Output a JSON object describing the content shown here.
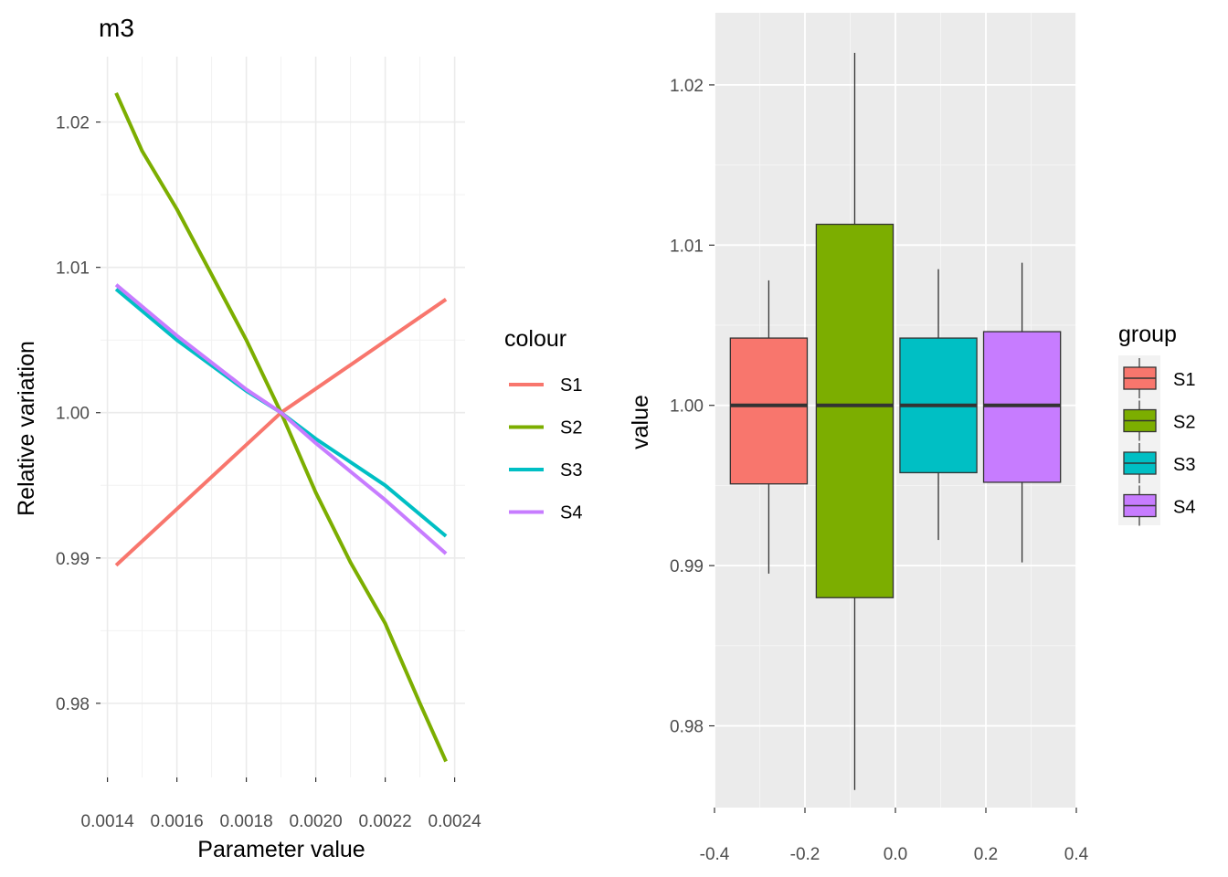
{
  "chart_data": [
    {
      "type": "line",
      "title": "m3",
      "xlabel": "Parameter value",
      "ylabel": "Relative variation",
      "xlim": [
        0.00138,
        0.00243
      ],
      "ylim": [
        0.9749,
        1.0245
      ],
      "x_ticks": [
        0.0014,
        0.0016,
        0.0018,
        0.002,
        0.0022,
        0.0024
      ],
      "x_tick_labels": [
        "0.0014",
        "0.0016",
        "0.0018",
        "0.0020",
        "0.0022",
        "0.0024"
      ],
      "y_ticks": [
        0.98,
        0.99,
        1.0,
        1.01,
        1.02
      ],
      "y_tick_labels": [
        "0.98",
        "0.99",
        "1.00",
        "1.01",
        "1.02"
      ],
      "grid": true,
      "legend": {
        "title": "colour",
        "position": "right"
      },
      "series": [
        {
          "name": "S1",
          "color": "#F8766D",
          "x": [
            0.001425,
            0.0019,
            0.002375
          ],
          "y": [
            0.9895,
            1.0,
            1.0078
          ]
        },
        {
          "name": "S2",
          "color": "#7CAE00",
          "x": [
            0.001425,
            0.0015,
            0.0016,
            0.0017,
            0.0018,
            0.0019,
            0.002,
            0.0021,
            0.0022,
            0.0023,
            0.002375
          ],
          "y": [
            1.022,
            1.018,
            1.014,
            1.0095,
            1.005,
            1.0,
            0.9945,
            0.9897,
            0.9855,
            0.98,
            0.976
          ]
        },
        {
          "name": "S3",
          "color": "#00BFC4",
          "x": [
            0.001425,
            0.0016,
            0.0018,
            0.0019,
            0.002,
            0.0022,
            0.002375
          ],
          "y": [
            1.0085,
            1.005,
            1.0015,
            1.0,
            0.9982,
            0.995,
            0.9915
          ]
        },
        {
          "name": "S4",
          "color": "#C77CFF",
          "x": [
            0.001425,
            0.0016,
            0.0018,
            0.0019,
            0.002,
            0.0022,
            0.002375
          ],
          "y": [
            1.0088,
            1.0053,
            1.0016,
            1.0,
            0.9979,
            0.994,
            0.9903
          ]
        }
      ]
    },
    {
      "type": "box",
      "title": "",
      "xlabel": "",
      "ylabel": "value",
      "xlim": [
        -0.4,
        0.4
      ],
      "ylim": [
        0.9749,
        1.0245
      ],
      "x_ticks": [
        -0.4,
        -0.2,
        0.0,
        0.2,
        0.4
      ],
      "x_tick_labels": [
        "-0.4",
        "-0.2",
        "0.0",
        "0.2",
        "0.4"
      ],
      "y_ticks": [
        0.98,
        0.99,
        1.0,
        1.01,
        1.02
      ],
      "y_tick_labels": [
        "0.98",
        "0.99",
        "1.00",
        "1.01",
        "1.02"
      ],
      "grid": true,
      "legend": {
        "title": "group",
        "position": "right"
      },
      "boxes": [
        {
          "name": "S1",
          "color": "#F8766D",
          "x_center": -0.28,
          "width": 0.17,
          "min": 0.9895,
          "q1": 0.9951,
          "median": 1.0,
          "q3": 1.0042,
          "max": 1.0078
        },
        {
          "name": "S2",
          "color": "#7CAE00",
          "x_center": -0.09,
          "width": 0.17,
          "min": 0.976,
          "q1": 0.988,
          "median": 1.0,
          "q3": 1.0113,
          "max": 1.022
        },
        {
          "name": "S3",
          "color": "#00BFC4",
          "x_center": 0.095,
          "width": 0.17,
          "min": 0.9916,
          "q1": 0.9958,
          "median": 1.0,
          "q3": 1.0042,
          "max": 1.0085
        },
        {
          "name": "S4",
          "color": "#C77CFF",
          "x_center": 0.28,
          "width": 0.17,
          "min": 0.9902,
          "q1": 0.9952,
          "median": 1.0,
          "q3": 1.0046,
          "max": 1.0089
        }
      ]
    }
  ]
}
